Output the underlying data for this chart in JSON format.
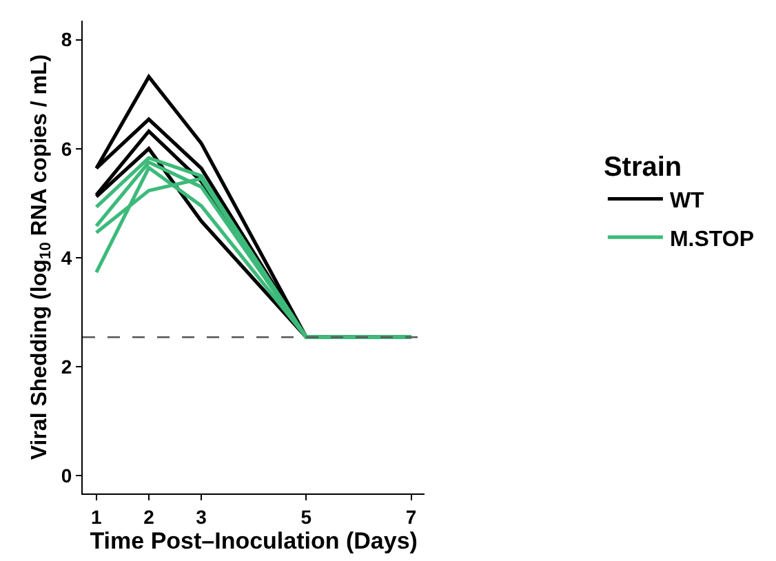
{
  "chart_data": {
    "type": "line",
    "xlabel": "Time Post–Inoculation (Days)",
    "ylabel": "Viral Shedding (log$_{10}$ RNA copies / mL)",
    "legend_title": "Strain",
    "x": [
      1,
      2,
      3,
      5,
      7
    ],
    "series": [
      {
        "name": "WT",
        "color": "#000000",
        "values": [
          5.64,
          7.32,
          6.1,
          2.54,
          2.54
        ]
      },
      {
        "color": "#000000",
        "values": [
          5.64,
          6.54,
          5.64,
          2.54,
          2.54
        ]
      },
      {
        "color": "#000000",
        "values": [
          5.15,
          6.32,
          5.4,
          2.54,
          2.54
        ]
      },
      {
        "color": "#000000",
        "values": [
          5.12,
          6.0,
          4.67,
          2.54,
          2.54
        ]
      },
      {
        "name": "M.STOP",
        "color": "#3dba7a",
        "values": [
          4.93,
          5.83,
          5.5,
          2.54,
          2.54
        ]
      },
      {
        "color": "#3dba7a",
        "values": [
          4.58,
          5.75,
          5.3,
          2.54,
          2.54
        ]
      },
      {
        "color": "#3dba7a",
        "values": [
          4.46,
          5.23,
          5.45,
          2.54,
          2.54
        ]
      },
      {
        "color": "#3dba7a",
        "values": [
          3.73,
          5.65,
          4.95,
          2.54,
          2.54
        ]
      }
    ],
    "xlim": [
      0.74,
      7.26
    ],
    "xticks": [
      1,
      2,
      3,
      5,
      7
    ],
    "ylim": [
      -0.33,
      8.35
    ],
    "yticks": [
      0,
      2,
      4,
      6,
      8
    ],
    "ref_lines": [
      {
        "axis": "y",
        "value": 2.54,
        "color": "#555555",
        "line_style": "dashed"
      }
    ],
    "legend": "right",
    "marker": "none",
    "line_style": "solid"
  }
}
